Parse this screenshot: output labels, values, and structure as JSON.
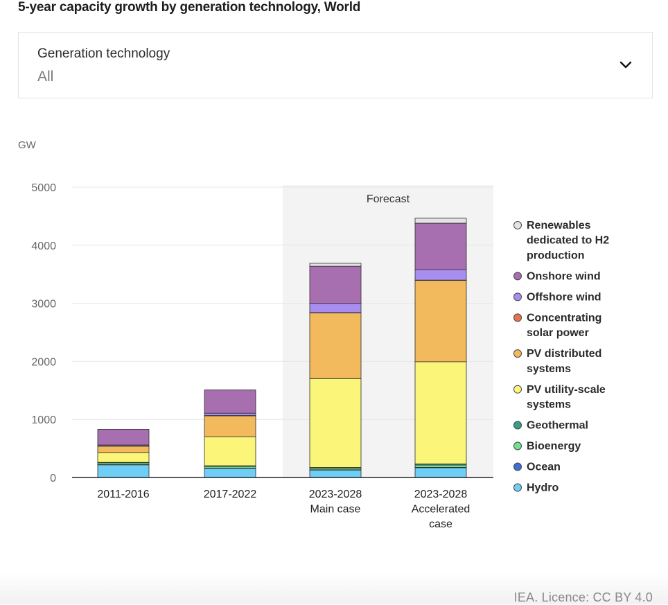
{
  "title": "5-year capacity growth by generation technology, World",
  "filter": {
    "label": "Generation technology",
    "value": "All"
  },
  "credit": "IEA. Licence: CC BY 4.0",
  "chart_data": {
    "type": "bar",
    "stacked": true,
    "unit_label": "GW",
    "ylim": [
      0,
      5000
    ],
    "yticks": [
      0,
      1000,
      2000,
      3000,
      4000,
      5000
    ],
    "grid": true,
    "legend_position": "right",
    "categories": [
      [
        "2011-2016"
      ],
      [
        "2017-2022"
      ],
      [
        "2023-2028",
        "Main case"
      ],
      [
        "2023-2028",
        "Accelerated",
        "case"
      ]
    ],
    "forecast": {
      "label": "Forecast",
      "categories": [
        2,
        3
      ]
    },
    "series": [
      {
        "name": "Hydro",
        "color": "#6fcef5",
        "values": [
          220,
          160,
          130,
          170
        ]
      },
      {
        "name": "Ocean",
        "color": "#3f6fd1",
        "values": [
          2,
          2,
          3,
          4
        ]
      },
      {
        "name": "Bioenergy",
        "color": "#74e08e",
        "values": [
          30,
          30,
          30,
          40
        ]
      },
      {
        "name": "Geothermal",
        "color": "#33a08a",
        "values": [
          8,
          10,
          10,
          20
        ]
      },
      {
        "name": "PV utility-scale systems",
        "color": "#fbf57a",
        "values": [
          170,
          500,
          1530,
          1760
        ]
      },
      {
        "name": "PV distributed systems",
        "color": "#f3b95d",
        "values": [
          110,
          360,
          1130,
          1400
        ]
      },
      {
        "name": "Concentrating solar power",
        "color": "#e8724c",
        "values": [
          5,
          5,
          5,
          5
        ]
      },
      {
        "name": "Offshore wind",
        "color": "#a88fef",
        "values": [
          15,
          40,
          160,
          180
        ]
      },
      {
        "name": "Onshore wind",
        "color": "#a86fb0",
        "values": [
          270,
          400,
          640,
          800
        ]
      },
      {
        "name": "Renewables dedicated to H2 production",
        "color": "#e3e3e3",
        "values": [
          0,
          0,
          50,
          85
        ]
      }
    ],
    "legend": [
      [
        "Renewables",
        "dedicated to H2",
        "production"
      ],
      [
        "Onshore wind"
      ],
      [
        "Offshore wind"
      ],
      [
        "Concentrating",
        "solar power"
      ],
      [
        "PV distributed",
        "systems"
      ],
      [
        "PV utility-scale",
        "systems"
      ],
      [
        "Geothermal"
      ],
      [
        "Bioenergy"
      ],
      [
        "Ocean"
      ],
      [
        "Hydro"
      ]
    ]
  }
}
